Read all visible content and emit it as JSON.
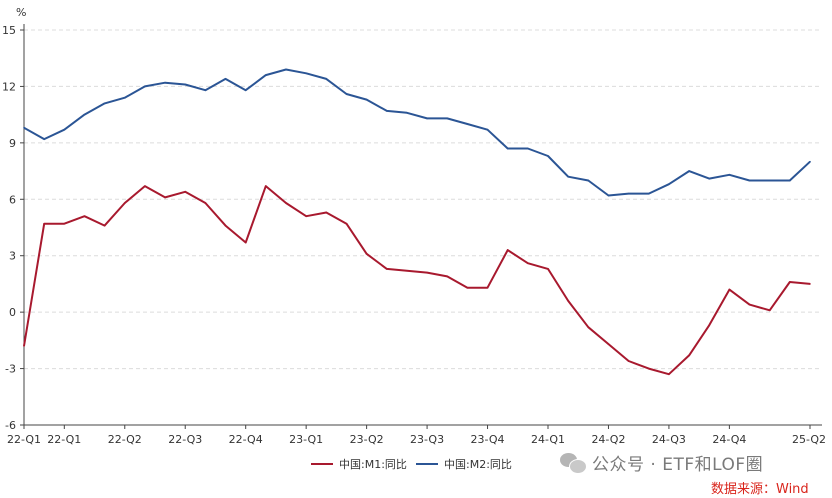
{
  "chart_data": {
    "type": "line",
    "ylabel": "%",
    "ylim": [
      -6,
      15
    ],
    "yticks": [
      "15",
      "12",
      "9",
      "6",
      "3",
      "0",
      "-3",
      "-6"
    ],
    "x_ticks": [
      "22-Q1",
      "22-Q1",
      "22-Q2",
      "22-Q3",
      "22-Q4",
      "23-Q1",
      "23-Q2",
      "23-Q3",
      "23-Q4",
      "24-Q1",
      "24-Q2",
      "24-Q3",
      "24-Q4",
      "25-Q2"
    ],
    "x_tick_index": [
      0,
      2,
      5,
      8,
      11,
      14,
      17,
      20,
      23,
      26,
      29,
      32,
      35,
      39
    ],
    "x_count": 40,
    "grid": "horizontal dashed",
    "legend_position": "bottom-center",
    "series": [
      {
        "name": "中国:M1:同比",
        "color": "#a8192e",
        "values": [
          -1.8,
          4.7,
          4.7,
          5.1,
          4.6,
          5.8,
          6.7,
          6.1,
          6.4,
          5.8,
          4.6,
          3.7,
          6.7,
          5.8,
          5.1,
          5.3,
          4.7,
          3.1,
          2.3,
          2.2,
          2.1,
          1.9,
          1.3,
          1.3,
          3.3,
          2.6,
          2.3,
          0.6,
          -0.8,
          -1.7,
          -2.6,
          -3.0,
          -3.3,
          -2.3,
          -0.7,
          1.2,
          0.4,
          0.1,
          1.6,
          1.5
        ]
      },
      {
        "name": "中国:M2:同比",
        "color": "#2b5595",
        "values": [
          9.8,
          9.2,
          9.7,
          10.5,
          11.1,
          11.4,
          12.0,
          12.2,
          12.1,
          11.8,
          12.4,
          11.8,
          12.6,
          12.9,
          12.7,
          12.4,
          11.6,
          11.3,
          10.7,
          10.6,
          10.3,
          10.3,
          10.0,
          9.7,
          8.7,
          8.7,
          8.3,
          7.2,
          7.0,
          6.2,
          6.3,
          6.3,
          6.8,
          7.5,
          7.1,
          7.3,
          7.0,
          7.0,
          7.0,
          8.0
        ]
      }
    ]
  },
  "watermark": {
    "text": "公众号 · ETF和LOF圈",
    "icon": "wechat-icon"
  },
  "source": {
    "text": "数据来源：Wind",
    "color": "#d9251c"
  }
}
